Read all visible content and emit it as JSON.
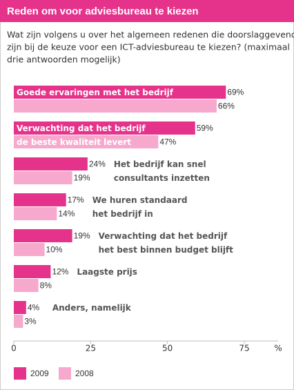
{
  "chart_data": {
    "type": "bar",
    "orientation": "horizontal",
    "title": "Reden om voor adviesbureau te kiezen",
    "subtitle": [
      "Wat zijn volgens u over het algemeen redenen die doorslaggevend",
      "zijn bij de keuze voor een ICT-adviesbureau te kiezen? (maximaal",
      "drie antwoorden mogelijk)"
    ],
    "categories": [
      [
        "Goede ervaringen met het bedrijf"
      ],
      [
        "Verwachting dat het bedrijf",
        "de beste kwaliteit levert"
      ],
      [
        "Het bedrijf kan snel",
        "consultants inzetten"
      ],
      [
        "We huren standaard",
        "het bedrijf in"
      ],
      [
        "Verwachting dat het bedrijf",
        "het best binnen budget blijft"
      ],
      [
        "Laagste prijs"
      ],
      [
        "Anders, namelijk"
      ]
    ],
    "series": [
      {
        "name": "2009",
        "color": "#e5338b",
        "values": [
          69,
          59,
          24,
          17,
          19,
          12,
          4
        ],
        "value_labels": [
          "69%",
          "59%",
          "24%",
          "17%",
          "19%",
          "12%",
          "4%"
        ]
      },
      {
        "name": "2008",
        "color": "#f6a9cd",
        "values": [
          66,
          47,
          19,
          14,
          10,
          8,
          3
        ],
        "value_labels": [
          "66%",
          "47%",
          "19%",
          "14%",
          "10%",
          "8%",
          "3%"
        ]
      }
    ],
    "xlim": [
      0,
      86
    ],
    "xticks": [
      0,
      25,
      50,
      75
    ],
    "x_label": "%"
  }
}
